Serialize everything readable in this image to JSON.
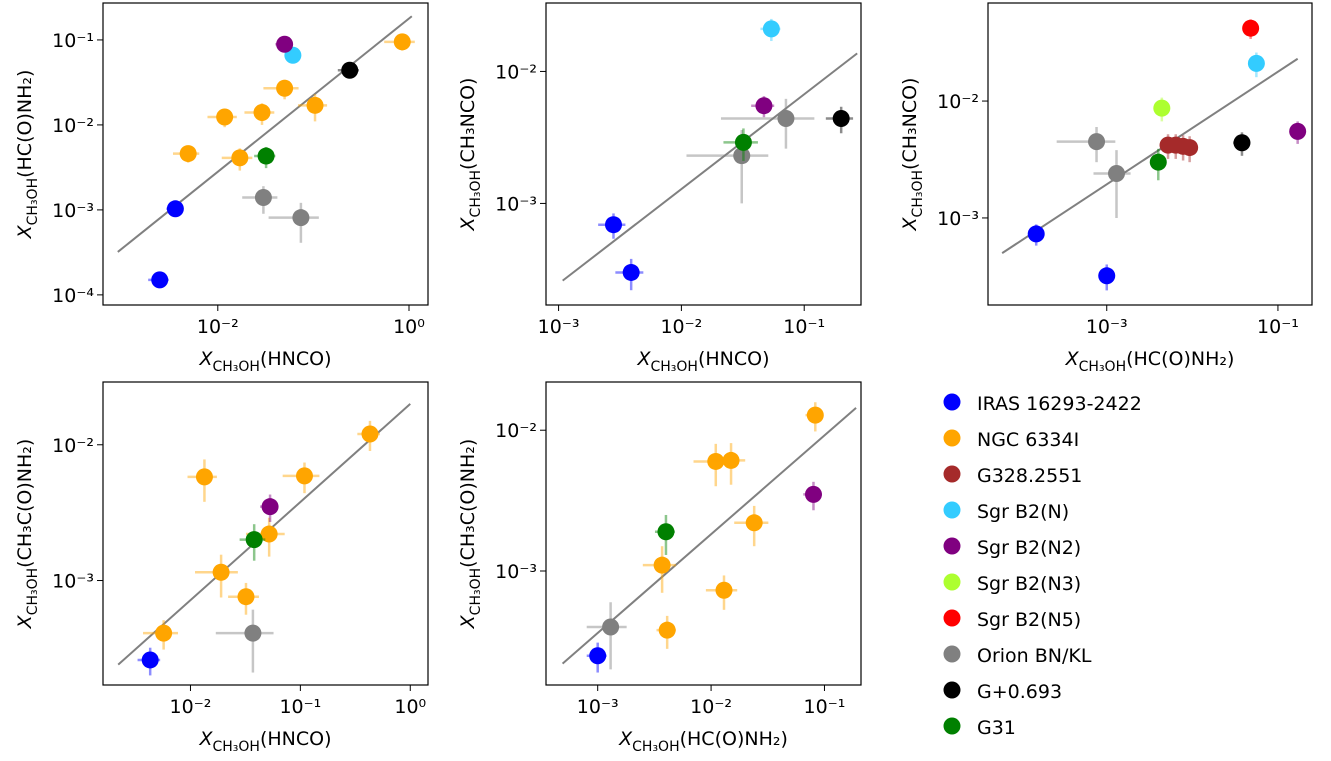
{
  "chart_data": [
    {
      "type": "scatter",
      "xscale": "log",
      "yscale": "log",
      "xlabel": {
        "main": "X",
        "sub": "CH₃OH",
        "rest": "(HNCO)"
      },
      "ylabel": {
        "main": "X",
        "sub": "CH₃OH",
        "rest": "(HC(O)NH₂)"
      },
      "xlim": [
        0.00063,
        1.58
      ],
      "ylim": [
        7.6e-05,
        0.272
      ],
      "xticks": [
        {
          "value": 0.01,
          "label": "10⁻²"
        },
        {
          "value": 1,
          "label": "10⁰"
        }
      ],
      "yticks": [
        {
          "value": 0.0001,
          "label": "10⁻⁴"
        },
        {
          "value": 0.001,
          "label": "10⁻³"
        },
        {
          "value": 0.01,
          "label": "10⁻²"
        },
        {
          "value": 0.1,
          "label": "10⁻¹"
        }
      ],
      "fit": {
        "color": "#808080",
        "x": [
          0.0009,
          1.07
        ],
        "y": [
          0.00032,
          0.19
        ]
      },
      "series": [
        {
          "name": "IRAS 16293-2422",
          "color": "#0000ff",
          "x": [
            0.00247,
            0.0036
          ],
          "y": [
            0.00015,
            0.00103
          ],
          "xerr": [
            0.0006,
            0.0007
          ],
          "yerr": [
            2e-05,
            0.00015
          ]
        },
        {
          "name": "NGC 6334I",
          "color": "#ffa500",
          "x": [
            0.0049,
            0.0118,
            0.017,
            0.029,
            0.05,
            0.104,
            0.85
          ],
          "y": [
            0.0046,
            0.0124,
            0.0041,
            0.014,
            0.027,
            0.017,
            0.095
          ],
          "xerr": [
            0.0015,
            0.004,
            0.006,
            0.01,
            0.02,
            0.035,
            0.3
          ],
          "yerr": [
            0.001,
            0.003,
            0.0012,
            0.004,
            0.007,
            0.006,
            0.02
          ]
        },
        {
          "name": "Sgr B2(N)",
          "color": "#33ccff",
          "x": [
            0.061
          ],
          "y": [
            0.066
          ],
          "xerr": [
            0.01
          ],
          "yerr": [
            0.012
          ]
        },
        {
          "name": "Sgr B2(N2)",
          "color": "#800080",
          "x": [
            0.05
          ],
          "y": [
            0.089
          ],
          "xerr": [
            0.01
          ],
          "yerr": [
            0.012
          ]
        },
        {
          "name": "Orion BN/KL",
          "color": "#808080",
          "x": [
            0.03,
            0.074
          ],
          "y": [
            0.0014,
            0.00081
          ],
          "xerr": [
            0.012,
            0.04
          ],
          "yerr": [
            0.0005,
            0.0004
          ]
        },
        {
          "name": "G+0.693",
          "color": "#000000",
          "x": [
            0.24
          ],
          "y": [
            0.044
          ],
          "xerr": [
            0.06
          ],
          "yerr": [
            0.008
          ]
        },
        {
          "name": "G31",
          "color": "#008000",
          "x": [
            0.032
          ],
          "y": [
            0.0043
          ],
          "xerr": [
            0.008
          ],
          "yerr": [
            0.0012
          ]
        }
      ]
    },
    {
      "type": "scatter",
      "xscale": "log",
      "yscale": "log",
      "xlabel": {
        "main": "X",
        "sub": "CH₃OH",
        "rest": "(HNCO)"
      },
      "ylabel": {
        "main": "X",
        "sub": "CH₃OH",
        "rest": "(CH₃NCO)"
      },
      "xlim": [
        0.00079,
        0.29
      ],
      "ylim": [
        0.00017,
        0.033
      ],
      "xticks": [
        {
          "value": 0.001,
          "label": "10⁻³"
        },
        {
          "value": 0.01,
          "label": "10⁻²"
        },
        {
          "value": 0.1,
          "label": "10⁻¹"
        }
      ],
      "yticks": [
        {
          "value": 0.001,
          "label": "10⁻³"
        },
        {
          "value": 0.01,
          "label": "10⁻²"
        }
      ],
      "fit": {
        "color": "#808080",
        "x": [
          0.00108,
          0.27
        ],
        "y": [
          0.00026,
          0.0137
        ]
      },
      "series": [
        {
          "name": "IRAS 16293-2422",
          "color": "#0000ff",
          "x": [
            0.0028,
            0.0039
          ],
          "y": [
            0.00069,
            0.0003
          ],
          "xerr": [
            0.0007,
            0.001
          ],
          "yerr": [
            0.00015,
            8e-05
          ]
        },
        {
          "name": "Sgr B2(N)",
          "color": "#33ccff",
          "x": [
            0.054
          ],
          "y": [
            0.021
          ],
          "xerr": [
            0.01
          ],
          "yerr": [
            0.004
          ]
        },
        {
          "name": "Sgr B2(N2)",
          "color": "#800080",
          "x": [
            0.047
          ],
          "y": [
            0.0055
          ],
          "xerr": [
            0.01
          ],
          "yerr": [
            0.001
          ]
        },
        {
          "name": "Orion BN/KL",
          "color": "#808080",
          "x": [
            0.071,
            0.031
          ],
          "y": [
            0.0044,
            0.0023
          ],
          "xerr": [
            0.05,
            0.02
          ],
          "yerr": [
            0.0018,
            0.0013
          ]
        },
        {
          "name": "G+0.693",
          "color": "#000000",
          "x": [
            0.2
          ],
          "y": [
            0.0044
          ],
          "xerr": [
            0.05
          ],
          "yerr": [
            0.001
          ]
        },
        {
          "name": "G31",
          "color": "#008000",
          "x": [
            0.032
          ],
          "y": [
            0.0029
          ],
          "xerr": [
            0.01
          ],
          "yerr": [
            0.0008
          ]
        }
      ]
    },
    {
      "type": "scatter",
      "xscale": "log",
      "yscale": "log",
      "xlabel": {
        "main": "X",
        "sub": "CH₃OH",
        "rest": "(HC(O)NH₂)"
      },
      "ylabel": {
        "main": "X",
        "sub": "CH₃OH",
        "rest": "(CH₃NCO)"
      },
      "xlim": [
        4.1e-05,
        0.25
      ],
      "ylim": [
        0.00018,
        0.069
      ],
      "xticks": [
        {
          "value": 0.001,
          "label": "10⁻³"
        },
        {
          "value": 0.1,
          "label": "10⁻¹"
        }
      ],
      "yticks": [
        {
          "value": 0.001,
          "label": "10⁻³"
        },
        {
          "value": 0.01,
          "label": "10⁻²"
        }
      ],
      "fit": {
        "color": "#808080",
        "x": [
          6e-05,
          0.17
        ],
        "y": [
          0.0005,
          0.023
        ]
      },
      "series": [
        {
          "name": "IRAS 16293-2422",
          "color": "#0000ff",
          "x": [
            0.00015,
            0.001
          ],
          "y": [
            0.00073,
            0.00032
          ],
          "xerr": [
            3e-05,
            0.0002
          ],
          "yerr": [
            0.00015,
            8e-05
          ]
        },
        {
          "name": "G328.2551",
          "color": "#a52a2a",
          "x": [
            0.0052,
            0.0064,
            0.0078,
            0.0093
          ],
          "y": [
            0.0042,
            0.0042,
            0.0041,
            0.004
          ],
          "xerr": [
            0.0008,
            0.001,
            0.0012,
            0.0015
          ],
          "yerr": [
            0.001,
            0.001,
            0.001,
            0.001
          ]
        },
        {
          "name": "Sgr B2(N)",
          "color": "#33ccff",
          "x": [
            0.056
          ],
          "y": [
            0.021
          ],
          "xerr": [
            0.008
          ],
          "yerr": [
            0.005
          ]
        },
        {
          "name": "Sgr B2(N2)",
          "color": "#800080",
          "x": [
            0.17
          ],
          "y": [
            0.0055
          ],
          "xerr": [
            0.03
          ],
          "yerr": [
            0.0012
          ]
        },
        {
          "name": "Sgr B2(N3)",
          "color": "#adff2f",
          "x": [
            0.0044
          ],
          "y": [
            0.0087
          ],
          "xerr": [
            0.0007
          ],
          "yerr": [
            0.002
          ]
        },
        {
          "name": "Sgr B2(N5)",
          "color": "#ff0000",
          "x": [
            0.048
          ],
          "y": [
            0.042
          ],
          "xerr": [
            0.008
          ],
          "yerr": [
            0.008
          ]
        },
        {
          "name": "Orion BN/KL",
          "color": "#808080",
          "x": [
            0.00076,
            0.0013
          ],
          "y": [
            0.0045,
            0.0024
          ],
          "xerr": [
            0.0005,
            0.0006
          ],
          "yerr": [
            0.0015,
            0.0014
          ]
        },
        {
          "name": "G+0.693",
          "color": "#000000",
          "x": [
            0.038
          ],
          "y": [
            0.0044
          ],
          "xerr": [
            0.008
          ],
          "yerr": [
            0.001
          ]
        },
        {
          "name": "G31",
          "color": "#008000",
          "x": [
            0.004
          ],
          "y": [
            0.003
          ],
          "xerr": [
            0.0006
          ],
          "yerr": [
            0.0009
          ]
        }
      ]
    },
    {
      "type": "scatter",
      "xscale": "log",
      "yscale": "log",
      "xlabel": {
        "main": "X",
        "sub": "CH₃OH",
        "rest": "(HNCO)"
      },
      "ylabel": {
        "main": "X",
        "sub": "CH₃OH",
        "rest": "(CH₃C(O)NH₂)"
      },
      "xlim": [
        0.0016,
        1.45
      ],
      "ylim": [
        0.00017,
        0.029
      ],
      "xticks": [
        {
          "value": 0.01,
          "label": "10⁻²"
        },
        {
          "value": 0.1,
          "label": "10⁻¹"
        },
        {
          "value": 1,
          "label": "10⁰"
        }
      ],
      "yticks": [
        {
          "value": 0.001,
          "label": "10⁻³"
        },
        {
          "value": 0.01,
          "label": "10⁻²"
        }
      ],
      "fit": {
        "color": "#808080",
        "x": [
          0.0022,
          1.0
        ],
        "y": [
          0.00024,
          0.02
        ]
      },
      "series": [
        {
          "name": "IRAS 16293-2422",
          "color": "#0000ff",
          "x": [
            0.0043
          ],
          "y": [
            0.00026
          ],
          "xerr": [
            0.001
          ],
          "yerr": [
            6e-05
          ]
        },
        {
          "name": "NGC 6334I",
          "color": "#ffa500",
          "x": [
            0.0057,
            0.0134,
            0.019,
            0.032,
            0.052,
            0.109,
            0.43
          ],
          "y": [
            0.00041,
            0.0058,
            0.00115,
            0.00076,
            0.0022,
            0.0059,
            0.012
          ],
          "xerr": [
            0.002,
            0.004,
            0.008,
            0.01,
            0.02,
            0.04,
            0.1
          ],
          "yerr": [
            0.0001,
            0.002,
            0.0004,
            0.0002,
            0.0007,
            0.0015,
            0.003
          ]
        },
        {
          "name": "Sgr B2(N2)",
          "color": "#800080",
          "x": [
            0.053
          ],
          "y": [
            0.0035
          ],
          "xerr": [
            0.01
          ],
          "yerr": [
            0.0008
          ]
        },
        {
          "name": "Orion BN/KL",
          "color": "#808080",
          "x": [
            0.037
          ],
          "y": [
            0.00041
          ],
          "xerr": [
            0.02
          ],
          "yerr": [
            0.0002
          ]
        },
        {
          "name": "G31",
          "color": "#008000",
          "x": [
            0.038
          ],
          "y": [
            0.002
          ],
          "xerr": [
            0.01
          ],
          "yerr": [
            0.0006
          ]
        }
      ]
    },
    {
      "type": "scatter",
      "xscale": "log",
      "yscale": "log",
      "xlabel": {
        "main": "X",
        "sub": "CH₃OH",
        "rest": "(HC(O)NH₂)"
      },
      "ylabel": {
        "main": "X",
        "sub": "CH₃OH",
        "rest": "(CH₃C(O)NH₂)"
      },
      "xlim": [
        0.00035,
        0.21
      ],
      "ylim": [
        0.000155,
        0.022
      ],
      "xticks": [
        {
          "value": 0.001,
          "label": "10⁻³"
        },
        {
          "value": 0.01,
          "label": "10⁻²"
        },
        {
          "value": 0.1,
          "label": "10⁻¹"
        }
      ],
      "yticks": [
        {
          "value": 0.001,
          "label": "10⁻³"
        },
        {
          "value": 0.01,
          "label": "10⁻²"
        }
      ],
      "fit": {
        "color": "#808080",
        "x": [
          0.00049,
          0.19
        ],
        "y": [
          0.00022,
          0.0144
        ]
      },
      "series": [
        {
          "name": "IRAS 16293-2422",
          "color": "#0000ff",
          "x": [
            0.001
          ],
          "y": [
            0.00025
          ],
          "xerr": [
            0.0002
          ],
          "yerr": [
            6e-05
          ]
        },
        {
          "name": "NGC 6334I",
          "color": "#ffa500",
          "x": [
            0.0041,
            0.0037,
            0.011,
            0.015,
            0.013,
            0.024,
            0.083
          ],
          "y": [
            0.00038,
            0.0011,
            0.006,
            0.0061,
            0.00073,
            0.0022,
            0.0128
          ],
          "xerr": [
            0.0008,
            0.0012,
            0.004,
            0.005,
            0.004,
            0.008,
            0.015
          ],
          "yerr": [
            0.0001,
            0.0004,
            0.002,
            0.002,
            0.0002,
            0.0007,
            0.003
          ]
        },
        {
          "name": "Sgr B2(N2)",
          "color": "#800080",
          "x": [
            0.08
          ],
          "y": [
            0.0035
          ],
          "xerr": [
            0.015
          ],
          "yerr": [
            0.0008
          ]
        },
        {
          "name": "Orion BN/KL",
          "color": "#808080",
          "x": [
            0.0013
          ],
          "y": [
            0.0004
          ],
          "xerr": [
            0.0005
          ],
          "yerr": [
            0.0002
          ]
        },
        {
          "name": "G31",
          "color": "#008000",
          "x": [
            0.004
          ],
          "y": [
            0.0019
          ],
          "xerr": [
            0.0008
          ],
          "yerr": [
            0.0006
          ]
        }
      ]
    }
  ],
  "legend": [
    {
      "name": "IRAS 16293-2422",
      "color": "#0000ff"
    },
    {
      "name": "NGC 6334I",
      "color": "#ffa500"
    },
    {
      "name": "G328.2551",
      "color": "#a52a2a"
    },
    {
      "name": "Sgr B2(N)",
      "color": "#33ccff"
    },
    {
      "name": "Sgr B2(N2)",
      "color": "#800080"
    },
    {
      "name": "Sgr B2(N3)",
      "color": "#adff2f"
    },
    {
      "name": "Sgr B2(N5)",
      "color": "#ff0000"
    },
    {
      "name": "Orion BN/KL",
      "color": "#808080"
    },
    {
      "name": "G+0.693",
      "color": "#000000"
    },
    {
      "name": "G31",
      "color": "#008000"
    }
  ]
}
